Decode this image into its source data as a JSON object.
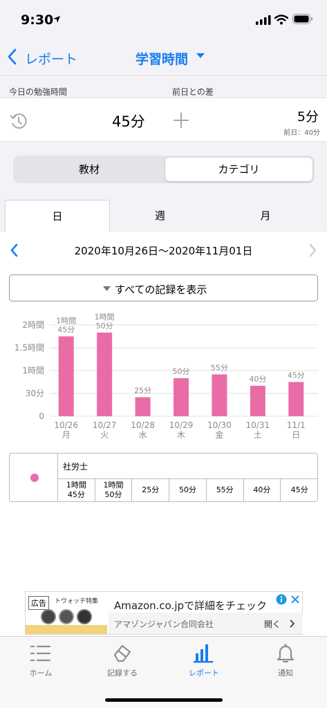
{
  "status_bar": {
    "time": "9:30"
  },
  "nav": {
    "back_label": "レポート",
    "title": "学習時間"
  },
  "summary": {
    "today_label": "今日の勉強時間",
    "diff_label": "前日との差",
    "today_value": "45分",
    "diff_value": "5分",
    "prev_day": "前日：40分"
  },
  "segment": {
    "items": [
      "教材",
      "カテゴリ"
    ],
    "selected": "カテゴリ"
  },
  "tabs": {
    "items": [
      "日",
      "週",
      "月"
    ],
    "selected": "日"
  },
  "date_range": "2020年10月26日〜2020年11月01日",
  "show_all_button": "すべての記録を表示",
  "chart_data": {
    "type": "bar",
    "categories": [
      "10/26\n月",
      "10/27\n火",
      "10/28\n水",
      "10/29\n木",
      "10/30\n金",
      "10/31\n土",
      "11/1\n日"
    ],
    "values": [
      105,
      110,
      25,
      50,
      55,
      40,
      45
    ],
    "data_labels": [
      "1時間\n45分",
      "1時間\n50分",
      "25分",
      "50分",
      "55分",
      "40分",
      "45分"
    ],
    "y_ticks": [
      0,
      30,
      60,
      90,
      120
    ],
    "y_tick_labels": [
      "0",
      "30分",
      "1時間",
      "1.5時間",
      "2時間"
    ],
    "ylim": [
      0,
      120
    ],
    "bar_color": "#ea6ca7",
    "grid": true
  },
  "table": {
    "category": "社労士",
    "dot_color": "#ea6ca7",
    "cells": [
      "1時間\n45分",
      "1時間\n50分",
      "25分",
      "50分",
      "55分",
      "40分",
      "45分"
    ]
  },
  "ad": {
    "badge": "広告",
    "product_caption": "トウォッチ特集",
    "headline": "Amazon.co.jpで詳細をチェック",
    "advertiser": "アマゾンジャパン合同会社",
    "open_label": "開く"
  },
  "tab_bar": {
    "items": [
      {
        "label": "ホーム",
        "icon": "list-icon"
      },
      {
        "label": "記録する",
        "icon": "eraser-icon"
      },
      {
        "label": "レポート",
        "icon": "bar-chart-icon"
      },
      {
        "label": "通知",
        "icon": "bell-icon"
      }
    ],
    "selected": "レポート",
    "accent": "#1a7cf0"
  }
}
